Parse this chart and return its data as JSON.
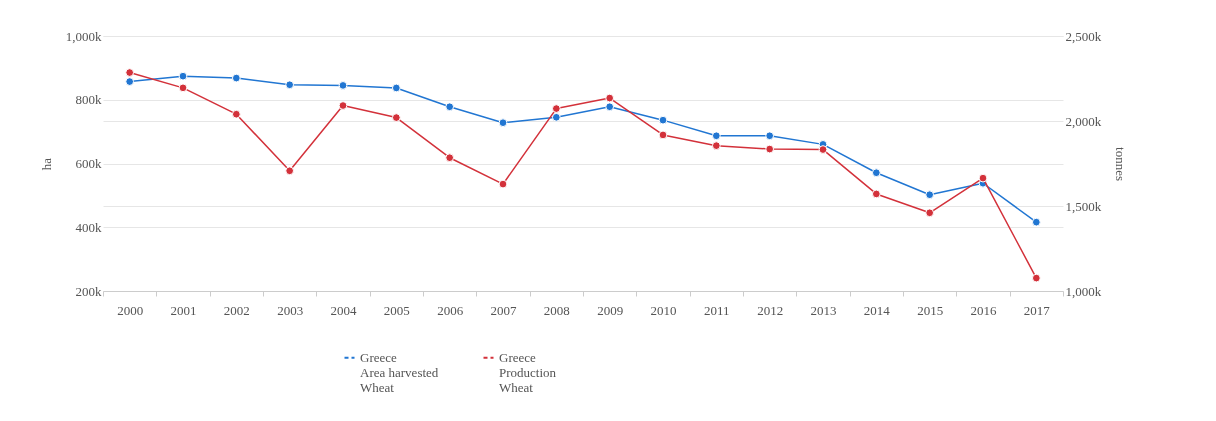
{
  "chart_data": {
    "type": "line",
    "categories": [
      "2000",
      "2001",
      "2002",
      "2003",
      "2004",
      "2005",
      "2006",
      "2007",
      "2008",
      "2009",
      "2010",
      "2011",
      "2012",
      "2013",
      "2014",
      "2015",
      "2016",
      "2017"
    ],
    "ylabel": "ha",
    "y2label": "tonnes",
    "ylim": [
      200000,
      1000000
    ],
    "yticks": [
      {
        "value": 200000,
        "label": "200k"
      },
      {
        "value": 400000,
        "label": "400k"
      },
      {
        "value": 600000,
        "label": "600k"
      },
      {
        "value": 800000,
        "label": "800k"
      },
      {
        "value": 1000000,
        "label": "1,000k"
      }
    ],
    "y2lim": [
      1000000,
      2500000
    ],
    "y2ticks": [
      {
        "value": 1000000,
        "label": "1,000k"
      },
      {
        "value": 1500000,
        "label": "1,500k"
      },
      {
        "value": 2000000,
        "label": "2,000k"
      },
      {
        "value": 2500000,
        "label": "2,500k"
      }
    ],
    "series": [
      {
        "name": "Greece\nArea harvested\nWheat",
        "color": "#2176d2",
        "values": [
          857000,
          874000,
          868000,
          847000,
          845000,
          837000,
          778000,
          728000,
          745000,
          778000,
          736000,
          687000,
          687000,
          660000,
          571000,
          502000,
          538000,
          416000
        ]
      },
      {
        "name": "Greece\nProduction\nWheat",
        "color": "#d3313a",
        "axis": "y2",
        "values": [
          2285000,
          2195000,
          2040000,
          1707000,
          2091000,
          2020000,
          1784000,
          1629000,
          2073000,
          2135000,
          1918000,
          1855000,
          1835000,
          1832000,
          1571000,
          1460000,
          1664000,
          1076000
        ]
      }
    ],
    "grid": "y",
    "legend": "bottom",
    "marker": "circle",
    "line_style": "solid"
  }
}
